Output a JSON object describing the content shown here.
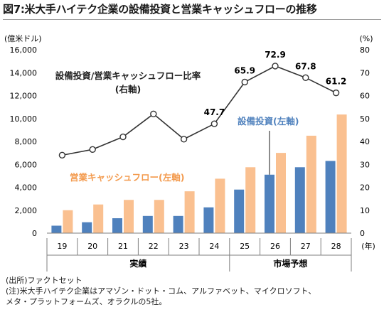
{
  "title": "図7:米大手ハイテク企業の設備投資と営業キャッシュフローの推移",
  "chart_data": {
    "type": "bar",
    "categories": [
      "19",
      "20",
      "21",
      "22",
      "23",
      "24",
      "25",
      "26",
      "27",
      "28"
    ],
    "x_unit": "(年)",
    "series": [
      {
        "name": "設備投資(左軸)",
        "axis": "left",
        "type": "bar",
        "color": "#4f81bd",
        "values": [
          650,
          950,
          1300,
          1500,
          1500,
          2250,
          3800,
          5100,
          5750,
          6300
        ]
      },
      {
        "name": "営業キャッシュフロー(左軸)",
        "axis": "left",
        "type": "bar",
        "color": "#fac090",
        "values": [
          2000,
          2500,
          2900,
          2900,
          3650,
          4750,
          5750,
          7000,
          8500,
          10350
        ]
      },
      {
        "name": "設備投資/営業キャッシュフロー比率 (右軸)",
        "axis": "right",
        "type": "line",
        "color": "#333333",
        "values": [
          34,
          36.5,
          42,
          52,
          41,
          47.7,
          65.9,
          72.9,
          67.8,
          61.2
        ]
      }
    ],
    "point_labels": [
      {
        "index": 5,
        "text": "47.7"
      },
      {
        "index": 6,
        "text": "65.9"
      },
      {
        "index": 7,
        "text": "72.9"
      },
      {
        "index": 8,
        "text": "67.8"
      },
      {
        "index": 9,
        "text": "61.2"
      }
    ],
    "legend_text": {
      "line_line1": "設備投資/営業キャッシュフロー比率",
      "line_line2": "(右軸)",
      "capex": "設備投資(左軸)",
      "ocf": "営業キャッシュフロー(左軸)"
    },
    "y_left": {
      "unit": "(億米ドル)",
      "min": 0,
      "max": 16000,
      "ticks": [
        0,
        2000,
        4000,
        6000,
        8000,
        10000,
        12000,
        14000,
        16000
      ],
      "tick_labels": [
        "0",
        "2,000",
        "4,000",
        "6,000",
        "8,000",
        "10,000",
        "12,000",
        "14,000",
        "16,000"
      ]
    },
    "y_right": {
      "unit": "(%)",
      "min": 0,
      "max": 80,
      "ticks": [
        0,
        10,
        20,
        30,
        40,
        50,
        60,
        70,
        80
      ],
      "tick_labels": [
        "0",
        "10",
        "20",
        "30",
        "40",
        "50",
        "60",
        "70",
        "80"
      ]
    },
    "groups": [
      {
        "label": "実績",
        "from": 0,
        "to": 5
      },
      {
        "label": "市場予想",
        "from": 6,
        "to": 9
      }
    ],
    "grid": false
  },
  "notes": {
    "source": "(出所)ファクトセット",
    "note1": "(注)米大手ハイテク企業はアマゾン・ドット・コム、アルファベット、マイクロソフト、",
    "note2": "メタ・プラットフォームズ、オラクルの5社。"
  }
}
